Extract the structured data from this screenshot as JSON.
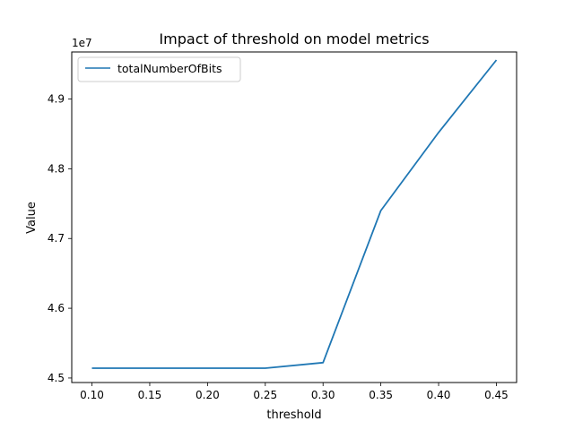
{
  "chart_data": {
    "type": "line",
    "title": "Impact of threshold on model metrics",
    "xlabel": "threshold",
    "ylabel": "Value",
    "y_offset_label": "1e7",
    "x": [
      0.1,
      0.15,
      0.2,
      0.25,
      0.3,
      0.35,
      0.4,
      0.45
    ],
    "x_ticks": [
      "0.10",
      "0.15",
      "0.20",
      "0.25",
      "0.30",
      "0.35",
      "0.40",
      "0.45"
    ],
    "y_tick_values": [
      4.5,
      4.6,
      4.7,
      4.8,
      4.9
    ],
    "y_ticks": [
      "4.5",
      "4.6",
      "4.7",
      "4.8",
      "4.9"
    ],
    "xlim": [
      0.0825,
      0.4675
    ],
    "ylim": [
      4.4935,
      4.9675
    ],
    "grid": false,
    "legend_position": "upper-left",
    "series": [
      {
        "name": "totalNumberOfBits",
        "color": "#1f77b4",
        "values": [
          4.514,
          4.514,
          4.514,
          4.514,
          4.522,
          4.74,
          4.852,
          4.956
        ]
      }
    ]
  }
}
